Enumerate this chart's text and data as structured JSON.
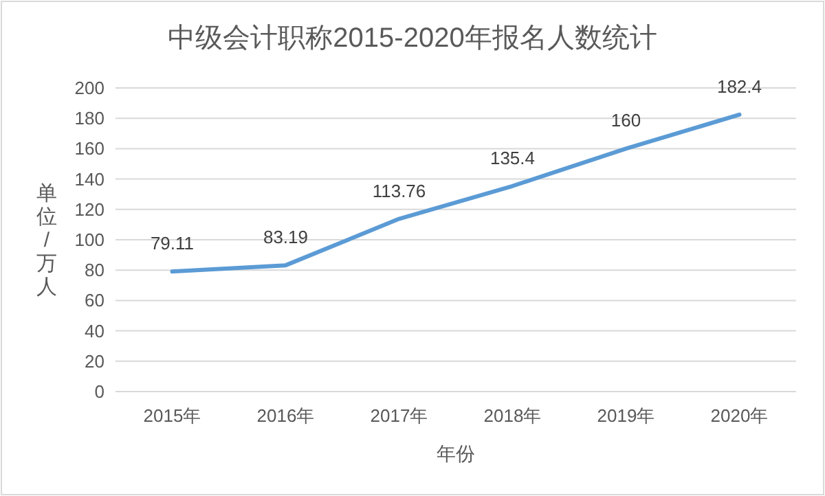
{
  "chart_data": {
    "type": "line",
    "title": "中级会计职称2015-2020年报名人数统计",
    "xlabel": "年份",
    "ylabel": "单位/万人",
    "categories": [
      "2015年",
      "2016年",
      "2017年",
      "2018年",
      "2019年",
      "2020年"
    ],
    "series": [
      {
        "color": "#5b9bd5",
        "values": [
          79.11,
          83.19,
          113.76,
          135.4,
          160,
          182.4
        ]
      }
    ],
    "ylim": [
      0,
      200
    ],
    "yticks": [
      0,
      20,
      40,
      60,
      80,
      100,
      120,
      140,
      160,
      180,
      200
    ],
    "grid": "y",
    "data_labels": true,
    "marker": "none",
    "line_style": "solid"
  }
}
